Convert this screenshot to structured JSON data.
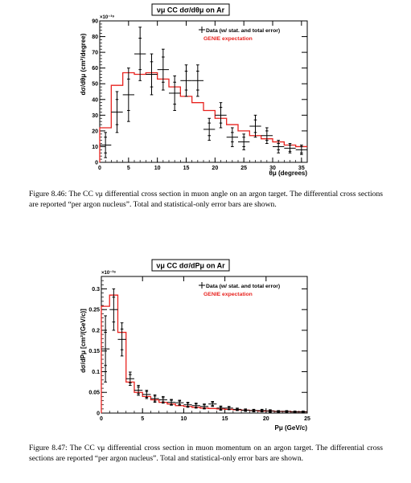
{
  "figures": [
    {
      "id": "fig846",
      "caption": "Figure 8.46: The CC νμ differential cross section in muon angle on an argon target. The differential cross sections are reported “per argon nucleus”. Total and statistical-only error bars are shown."
    },
    {
      "id": "fig847",
      "caption": "Figure 8.47: The CC νμ differential cross section in muon momentum on an argon target. The differential cross sections are reported “per argon nucleus”. Total and statistical-only error bars are shown."
    }
  ],
  "chart_data": [
    {
      "type": "line",
      "title": "νμ CC dσ/dθμ on Ar",
      "xlabel": "θμ (degrees)",
      "ylabel": "dσ/dθμ (cm²/degree)",
      "y_exponent": "×10⁻³⁹",
      "xlim": [
        0,
        36
      ],
      "ylim": [
        0,
        90
      ],
      "xticks": [
        0,
        5,
        10,
        15,
        20,
        25,
        30,
        35
      ],
      "yticks": [
        0,
        10,
        20,
        30,
        40,
        50,
        60,
        70,
        80,
        90
      ],
      "legend_position": "top-right",
      "series": [
        {
          "name": "Data (w/ stat. and total error)",
          "style": "points-with-errors",
          "color": "#000000",
          "x": [
            1,
            3,
            5,
            7,
            9,
            11,
            13,
            15,
            17,
            19,
            21,
            23,
            25,
            27,
            29,
            31,
            33,
            35
          ],
          "y": [
            11,
            32,
            43,
            69,
            56,
            59,
            44,
            52,
            52,
            21,
            30,
            16,
            13,
            23,
            17,
            10,
            9,
            8
          ],
          "xerr": 1,
          "yerr_stat": [
            5,
            8,
            10,
            10,
            8,
            8,
            7,
            6,
            6,
            4,
            5,
            3,
            3,
            4,
            3,
            2,
            2,
            2
          ],
          "yerr_total": [
            8,
            13,
            17,
            17,
            13,
            13,
            11,
            10,
            10,
            7,
            8,
            6,
            5,
            7,
            5,
            4,
            3,
            3
          ]
        },
        {
          "name": "GENIE expectation",
          "style": "step",
          "color": "#e8231f",
          "edges": [
            0,
            2,
            4,
            6,
            8,
            10,
            12,
            14,
            16,
            18,
            20,
            22,
            24,
            26,
            28,
            30,
            32,
            34,
            36
          ],
          "values": [
            22,
            49,
            57,
            56,
            57,
            53,
            48,
            42,
            38,
            33,
            28,
            24,
            20,
            17,
            15,
            13,
            11,
            10
          ]
        }
      ]
    },
    {
      "type": "line",
      "title": "νμ CC dσ/dPμ on Ar",
      "xlabel": "Pμ (GeV/c)",
      "ylabel": "dσ/dPμ [cm²/(GeV/c)]",
      "y_exponent": "×10⁻³⁶",
      "xlim": [
        0,
        25
      ],
      "ylim": [
        0,
        0.33
      ],
      "xticks": [
        0,
        5,
        10,
        15,
        20,
        25
      ],
      "yticks": [
        0,
        0.05,
        0.1,
        0.15,
        0.2,
        0.25,
        0.3
      ],
      "legend_position": "top-right",
      "series": [
        {
          "name": "Data (w/ stat. and total error)",
          "style": "points-with-errors",
          "color": "#000000",
          "x": [
            0.5,
            1.5,
            2.5,
            3.5,
            4.5,
            5.5,
            6.5,
            7.5,
            8.5,
            9.5,
            10.5,
            11.5,
            12.5,
            13.5,
            14.5,
            15.5,
            16.5,
            17.5,
            18.5,
            19.5,
            20.5,
            21.5,
            22.5,
            23.5,
            24.5
          ],
          "y": [
            0.155,
            0.25,
            0.178,
            0.083,
            0.055,
            0.045,
            0.035,
            0.032,
            0.026,
            0.025,
            0.02,
            0.018,
            0.016,
            0.022,
            0.012,
            0.012,
            0.009,
            0.007,
            0.006,
            0.006,
            0.005,
            0.004,
            0.004,
            0.003,
            0.003
          ],
          "xerr": 0.5,
          "yerr_stat": [
            0.04,
            0.03,
            0.025,
            0.01,
            0.008,
            0.007,
            0.006,
            0.005,
            0.005,
            0.004,
            0.004,
            0.004,
            0.004,
            0.004,
            0.003,
            0.003,
            0.002,
            0.002,
            0.002,
            0.002,
            0.002,
            0.001,
            0.001,
            0.001,
            0.001
          ],
          "yerr_total": [
            0.08,
            0.05,
            0.04,
            0.016,
            0.012,
            0.01,
            0.009,
            0.008,
            0.007,
            0.006,
            0.006,
            0.006,
            0.006,
            0.006,
            0.005,
            0.004,
            0.003,
            0.003,
            0.003,
            0.003,
            0.003,
            0.002,
            0.002,
            0.002,
            0.002
          ]
        },
        {
          "name": "GENIE expectation",
          "style": "step",
          "color": "#e8231f",
          "edges": [
            0,
            1,
            2,
            3,
            4,
            5,
            6,
            7,
            8,
            9,
            10,
            11,
            12,
            13,
            14,
            15,
            16,
            17,
            18,
            19,
            20,
            21,
            22,
            23,
            24,
            25
          ],
          "values": [
            0.258,
            0.285,
            0.195,
            0.075,
            0.05,
            0.04,
            0.032,
            0.026,
            0.022,
            0.018,
            0.016,
            0.014,
            0.012,
            0.011,
            0.01,
            0.009,
            0.008,
            0.007,
            0.006,
            0.005,
            0.005,
            0.004,
            0.004,
            0.003,
            0.003
          ]
        }
      ]
    }
  ]
}
